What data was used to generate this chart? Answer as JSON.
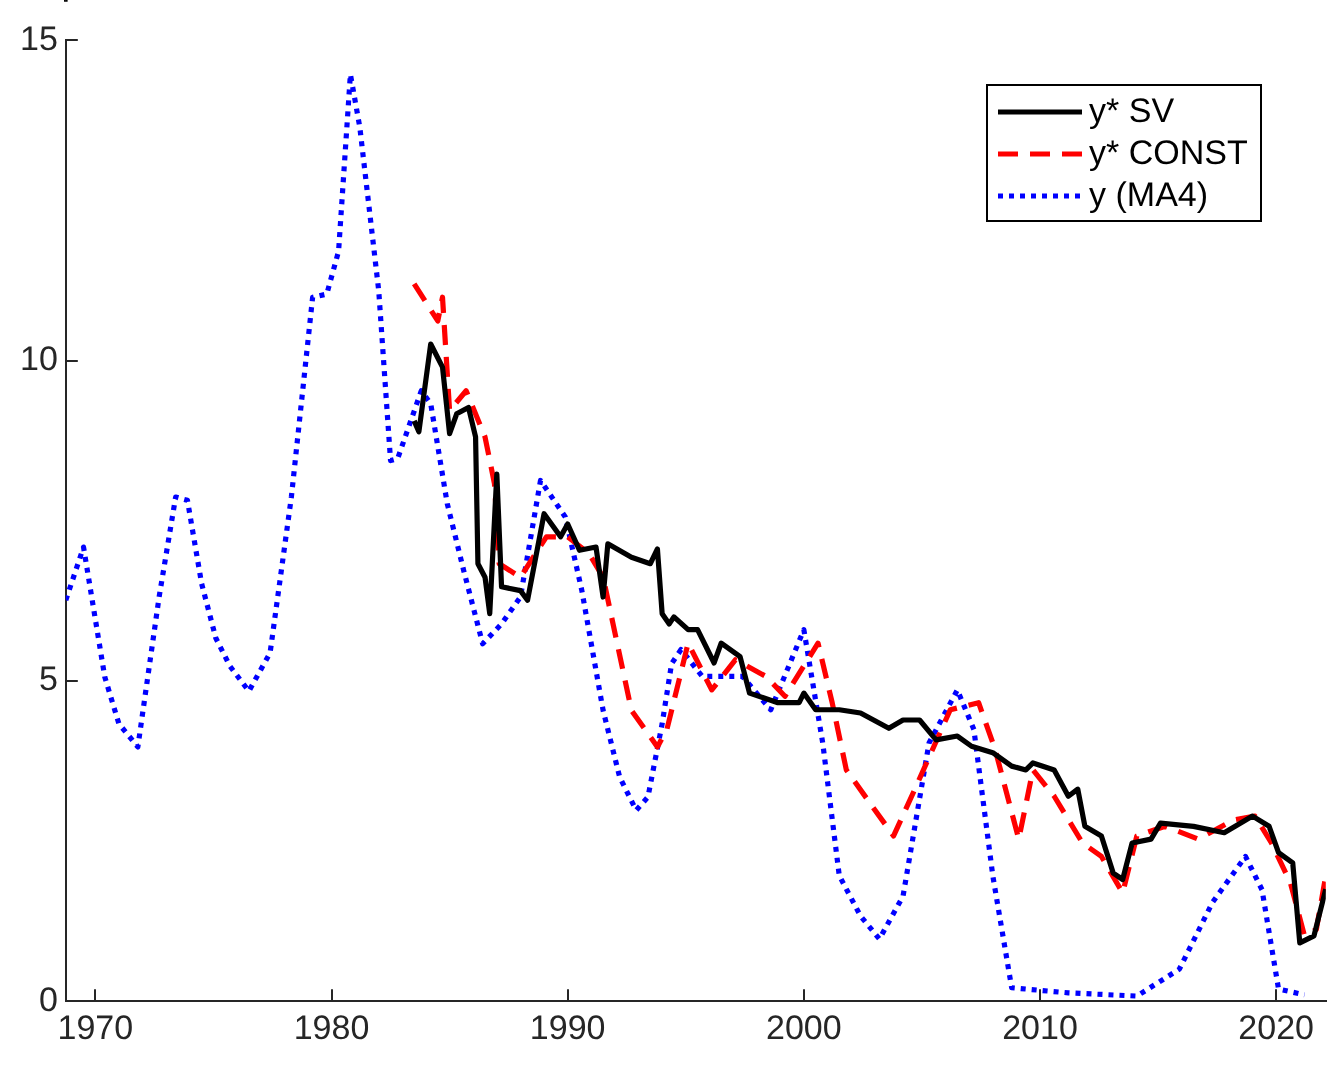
{
  "chart_data": {
    "type": "line",
    "xlim": [
      1968.75,
      2022.1
    ],
    "xticks": [
      1970,
      1980,
      1990,
      2000,
      2010,
      2020
    ],
    "ylim": [
      0,
      15
    ],
    "yticks": [
      0,
      5,
      10,
      15
    ],
    "grid": false,
    "legend": "top right",
    "marker": "none",
    "series": [
      {
        "name": "y* SV",
        "color": "#000000",
        "line_style": "solid",
        "x": [
          1983.5,
          1983.7,
          1984.2,
          1984.7,
          1985.0,
          1985.3,
          1985.8,
          1986.1,
          1986.2,
          1986.5,
          1986.7,
          1987.0,
          1987.2,
          1988.0,
          1988.3,
          1989.0,
          1989.7,
          1990.0,
          1990.5,
          1991.2,
          1991.5,
          1991.7,
          1992.7,
          1993.5,
          1993.8,
          1994.0,
          1994.3,
          1994.5,
          1995.1,
          1995.5,
          1996.2,
          1996.5,
          1997.3,
          1997.7,
          1998.9,
          1999.8,
          2000.0,
          2000.5,
          2001.5,
          2002.4,
          2003.6,
          2004.2,
          2004.9,
          2005.6,
          2006.5,
          2007.1,
          2008.0,
          2008.8,
          2009.4,
          2009.7,
          2010.6,
          2011.2,
          2011.6,
          2011.9,
          2012.6,
          2013.1,
          2013.5,
          2013.9,
          2014.7,
          2015.1,
          2016.5,
          2017.8,
          2019.0,
          2019.7,
          2020.1,
          2020.7,
          2021.0,
          2021.6,
          2022.1
        ],
        "values": [
          9.06,
          8.89,
          10.26,
          9.9,
          8.86,
          9.17,
          9.27,
          8.81,
          6.83,
          6.62,
          6.05,
          8.23,
          6.47,
          6.41,
          6.26,
          7.61,
          7.25,
          7.45,
          7.04,
          7.09,
          6.31,
          7.14,
          6.93,
          6.83,
          7.06,
          6.05,
          5.89,
          6.0,
          5.8,
          5.8,
          5.28,
          5.59,
          5.38,
          4.81,
          4.66,
          4.66,
          4.81,
          4.55,
          4.55,
          4.5,
          4.26,
          4.39,
          4.39,
          4.08,
          4.14,
          3.98,
          3.88,
          3.67,
          3.61,
          3.72,
          3.61,
          3.2,
          3.31,
          2.73,
          2.58,
          2.0,
          1.9,
          2.47,
          2.53,
          2.78,
          2.73,
          2.63,
          2.89,
          2.73,
          2.32,
          2.16,
          0.91,
          1.02,
          1.75
        ]
      },
      {
        "name": "y* CONST",
        "color": "#ff0000",
        "line_style": "dashed",
        "x": [
          1983.5,
          1984.5,
          1984.7,
          1985.0,
          1985.7,
          1986.5,
          1986.9,
          1987.1,
          1988.0,
          1989.1,
          1990.0,
          1990.9,
          1991.5,
          1992.7,
          1993.8,
          1994.2,
          1995.1,
          1996.1,
          1997.1,
          1998.4,
          1999.2,
          2000.6,
          2001.2,
          2001.8,
          2003.0,
          2003.8,
          2004.7,
          2006.2,
          2007.4,
          2008.1,
          2009.1,
          2009.7,
          2010.6,
          2011.8,
          2012.6,
          2013.5,
          2014.1,
          2015.3,
          2016.7,
          2018.2,
          2019.1,
          2019.8,
          2020.6,
          2021.2,
          2021.7,
          2022.1
        ],
        "values": [
          11.2,
          10.62,
          10.99,
          9.22,
          9.53,
          8.81,
          8.08,
          6.83,
          6.62,
          7.25,
          7.25,
          6.99,
          6.62,
          4.54,
          3.97,
          4.24,
          5.59,
          4.86,
          5.33,
          5.07,
          4.76,
          5.59,
          4.66,
          3.61,
          2.99,
          2.58,
          3.31,
          4.55,
          4.66,
          3.93,
          2.53,
          3.61,
          3.2,
          2.47,
          2.26,
          1.69,
          2.58,
          2.73,
          2.53,
          2.83,
          2.89,
          2.47,
          1.85,
          1.02,
          1.12,
          1.96
        ]
      },
      {
        "name": "y (MA4)",
        "color": "#0000ff",
        "line_style": "dotted",
        "x": [
          1968.75,
          1969.5,
          1970.4,
          1971.0,
          1971.8,
          1972.7,
          1973.4,
          1973.9,
          1974.5,
          1975.1,
          1975.7,
          1976.5,
          1977.4,
          1978.3,
          1979.2,
          1979.8,
          1980.3,
          1980.8,
          1981.2,
          1982.0,
          1982.5,
          1982.8,
          1983.8,
          1984.2,
          1984.9,
          1985.6,
          1986.4,
          1987.2,
          1988.0,
          1988.85,
          1989.9,
          1990.6,
          1991.5,
          1992.2,
          1992.9,
          1993.4,
          1994.0,
          1994.4,
          1994.8,
          1995.7,
          1996.5,
          1997.4,
          1998.6,
          2000.0,
          2000.8,
          2001.5,
          2002.4,
          2003.2,
          2004.2,
          2005.3,
          2006.5,
          2007.2,
          2008.0,
          2008.8,
          2011.2,
          2014.1,
          2015.9,
          2017.3,
          2018.7,
          2019.4,
          2020.1,
          2021.2
        ],
        "values": [
          6.26,
          7.09,
          5.06,
          4.33,
          3.97,
          6.31,
          7.87,
          7.82,
          6.52,
          5.67,
          5.23,
          4.84,
          5.44,
          7.87,
          10.99,
          11.04,
          11.71,
          14.47,
          13.64,
          11.09,
          8.44,
          8.47,
          9.53,
          9.33,
          7.77,
          6.72,
          5.58,
          5.89,
          6.31,
          8.13,
          7.56,
          6.41,
          4.54,
          3.5,
          2.98,
          3.19,
          4.33,
          5.27,
          5.49,
          5.07,
          5.07,
          5.07,
          4.55,
          5.8,
          4.03,
          1.96,
          1.33,
          0.97,
          1.64,
          4.03,
          4.86,
          4.24,
          1.96,
          0.21,
          0.13,
          0.08,
          0.5,
          1.54,
          2.26,
          1.74,
          0.19,
          0.1
        ]
      }
    ]
  }
}
